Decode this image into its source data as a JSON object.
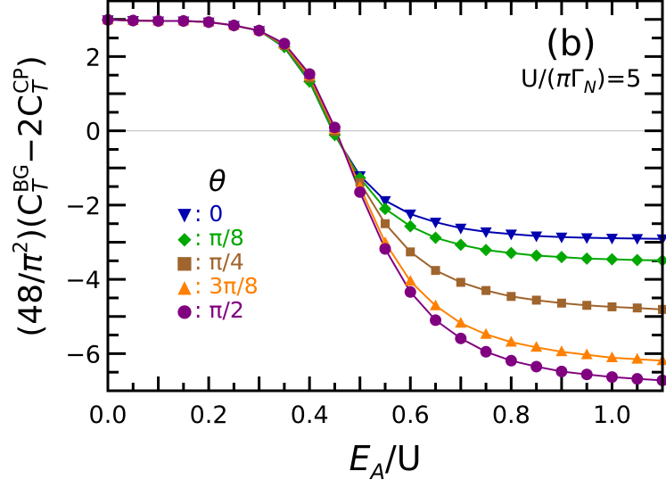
{
  "chart_data": {
    "type": "line",
    "panel_label": "(b)",
    "annotation": {
      "prefix": "U/(",
      "pi": "π",
      "gamma": "Γ",
      "sub": "N",
      "suffix": ")=5"
    },
    "xlabel": {
      "main": "E",
      "sub": "A",
      "rest": "/U"
    },
    "ylabel": {
      "p1": "(48/",
      "pi": "π",
      "sq": "2",
      "p2": ")(C",
      "bg_sup": "BG",
      "t1": "T",
      "p3": "−2C",
      "cp_sup": "CP",
      "t2": "T",
      "p4": ")"
    },
    "xlim": [
      0,
      1.1
    ],
    "ylim": [
      -7,
      3.5
    ],
    "xticks": [
      "0.0",
      "0.2",
      "0.4",
      "0.6",
      "0.8",
      "1.0"
    ],
    "yticks": [
      "2",
      "0",
      "−2",
      "−4",
      "−6"
    ],
    "zero_line": true,
    "legend": {
      "title": "θ",
      "position": "center-left"
    },
    "x": [
      0.0,
      0.05,
      0.1,
      0.15,
      0.2,
      0.25,
      0.3,
      0.35,
      0.4,
      0.45,
      0.5,
      0.55,
      0.6,
      0.65,
      0.7,
      0.75,
      0.8,
      0.85,
      0.9,
      0.95,
      1.0,
      1.05,
      1.1
    ],
    "series": [
      {
        "name": "0",
        "marker": "triangle-down",
        "color": "#0000b0",
        "values": [
          2.99,
          2.97,
          2.96,
          2.96,
          2.93,
          2.84,
          2.7,
          2.25,
          1.32,
          -0.12,
          -1.21,
          -1.88,
          -2.24,
          -2.46,
          -2.62,
          -2.72,
          -2.78,
          -2.83,
          -2.86,
          -2.88,
          -2.89,
          -2.9,
          -2.91
        ]
      },
      {
        "name": "π/8",
        "marker": "diamond",
        "color": "#00a800",
        "values": [
          2.99,
          2.97,
          2.96,
          2.96,
          2.93,
          2.84,
          2.7,
          2.26,
          1.33,
          -0.11,
          -1.27,
          -2.1,
          -2.57,
          -2.88,
          -3.07,
          -3.21,
          -3.29,
          -3.36,
          -3.4,
          -3.44,
          -3.46,
          -3.48,
          -3.49
        ]
      },
      {
        "name": "π/4",
        "marker": "square",
        "color": "#a0642d",
        "values": [
          2.99,
          2.97,
          2.96,
          2.96,
          2.93,
          2.84,
          2.7,
          2.3,
          1.42,
          -0.02,
          -1.39,
          -2.5,
          -3.26,
          -3.76,
          -4.08,
          -4.3,
          -4.46,
          -4.56,
          -4.64,
          -4.7,
          -4.74,
          -4.77,
          -4.81
        ]
      },
      {
        "name": "3π/8",
        "marker": "triangle-up",
        "color": "#ff8000",
        "values": [
          2.99,
          2.97,
          2.96,
          2.96,
          2.93,
          2.84,
          2.7,
          2.33,
          1.48,
          0.04,
          -1.51,
          -3.01,
          -4.05,
          -4.71,
          -5.18,
          -5.48,
          -5.69,
          -5.83,
          -5.95,
          -6.03,
          -6.11,
          -6.15,
          -6.19
        ]
      },
      {
        "name": "π/2",
        "marker": "circle",
        "color": "#800080",
        "values": [
          2.99,
          2.97,
          2.96,
          2.96,
          2.93,
          2.84,
          2.7,
          2.35,
          1.53,
          0.09,
          -1.65,
          -3.18,
          -4.34,
          -5.1,
          -5.59,
          -5.95,
          -6.19,
          -6.35,
          -6.48,
          -6.56,
          -6.63,
          -6.68,
          -6.72
        ]
      }
    ]
  }
}
